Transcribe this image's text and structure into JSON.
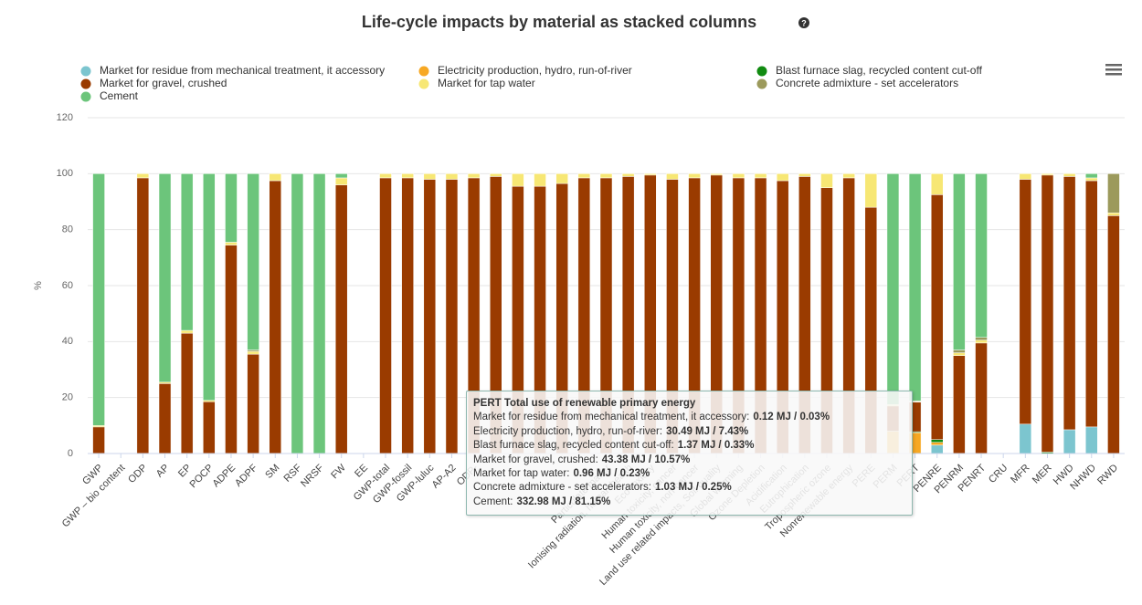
{
  "chart_data": {
    "type": "stacked_bar",
    "title": "Life-cycle impacts by material as stacked columns",
    "y_label": "%",
    "categories": [
      "GWP",
      "GWP – bio content",
      "ODP",
      "AP",
      "EP",
      "POCP",
      "ADPE",
      "ADPF",
      "SM",
      "RSF",
      "NRSF",
      "FW",
      "EE",
      "GWP-total",
      "GWP-fossil",
      "GWP-luluc",
      "AP-A2",
      "ODP-",
      null,
      null,
      null,
      null,
      null,
      "Particulate matter",
      "Ionising radiation, human health",
      "Eco-toxicity",
      "Human toxicity, cancer",
      "Human toxicity, non-cancer",
      "Land use related impacts, Soil quality",
      "Global warming",
      "Ozone Depletion",
      "Acidification",
      "Eutrophication",
      "Tropospheric ozone",
      "Nonrenewable energy",
      "PERE",
      "PERM",
      "PERT",
      "PENRE",
      "PENRM",
      "PENRT",
      "CRU",
      "MFR",
      "MER",
      "HWD",
      "NHWD",
      "RWD"
    ],
    "series": [
      {
        "name": "Market for residue from mechanical treatment, it accessory",
        "color": "#7cc5cf",
        "values": [
          0,
          0,
          0,
          0,
          0,
          0,
          0,
          0,
          0,
          0,
          0,
          0,
          0,
          0,
          0,
          0,
          0,
          0,
          0,
          0,
          0,
          0,
          0,
          0,
          0,
          0,
          0,
          0,
          0,
          0,
          0,
          0,
          0,
          0,
          0,
          0,
          0,
          0.03,
          3,
          0,
          0,
          0,
          10.5,
          0,
          8.5,
          9.5,
          0
        ]
      },
      {
        "name": "Electricity production, hydro, run-of-river",
        "color": "#f7a823",
        "values": [
          0,
          0,
          0,
          0,
          0,
          0,
          0,
          0,
          0,
          0,
          0,
          0,
          0,
          0,
          0,
          0,
          0,
          0,
          0,
          0,
          0,
          0,
          0,
          0,
          0,
          0,
          0,
          0,
          0,
          0,
          0,
          0,
          0,
          0,
          0,
          0,
          8,
          7.43,
          1,
          0,
          0,
          0,
          0,
          0,
          0,
          0,
          0
        ]
      },
      {
        "name": "Blast furnace slag, recycled content cut-off",
        "color": "#118b11",
        "values": [
          0,
          0,
          0,
          0,
          0,
          0,
          0,
          0,
          0,
          0,
          0,
          0,
          0,
          0,
          0,
          0,
          0,
          0,
          0,
          0,
          0,
          0,
          0,
          0,
          0,
          0,
          0,
          0,
          0,
          0,
          0,
          0,
          0,
          0,
          0,
          0,
          0,
          0.33,
          1,
          0,
          0,
          0,
          0,
          0.5,
          0,
          0,
          0
        ]
      },
      {
        "name": "Market for gravel, crushed",
        "color": "#9a3b00",
        "values": [
          9.5,
          0,
          98.5,
          25,
          43,
          18.5,
          74.5,
          35.5,
          97.5,
          0,
          0,
          96,
          0,
          98.5,
          98.5,
          98,
          98,
          98.5,
          99,
          95.5,
          95.5,
          96.5,
          98.5,
          98.5,
          99,
          99.5,
          98,
          98.5,
          99.5,
          98.5,
          98.5,
          97.5,
          99,
          95,
          98.5,
          88,
          9,
          10.57,
          87.5,
          35,
          39.5,
          0,
          87.5,
          99,
          90.5,
          88,
          85
        ]
      },
      {
        "name": "Market for tap water",
        "color": "#f7e774",
        "values": [
          0.5,
          0,
          1.5,
          0.5,
          1,
          0.5,
          1,
          1,
          2.5,
          0,
          0,
          2.5,
          0,
          1.5,
          1.5,
          2,
          2,
          1.5,
          1,
          4.5,
          4.5,
          3.5,
          1.5,
          1.5,
          1,
          0.5,
          2,
          1.5,
          0.5,
          1.5,
          1.5,
          2.5,
          1,
          5,
          1.5,
          12,
          0.5,
          0.23,
          7.5,
          1,
          1,
          0,
          2,
          0.5,
          1,
          1,
          1
        ]
      },
      {
        "name": "Concrete admixture - set accelerators",
        "color": "#9c9a5c",
        "values": [
          0,
          0,
          0,
          0,
          0,
          0,
          0,
          0.5,
          0,
          0,
          0,
          0,
          0,
          0,
          0,
          0,
          0,
          0,
          0,
          0,
          0,
          0,
          0,
          0,
          0,
          0,
          0,
          0,
          0,
          0,
          0,
          0,
          0,
          0,
          0,
          0,
          0,
          0.25,
          0,
          1,
          1,
          0,
          0,
          0,
          0,
          0,
          14
        ]
      },
      {
        "name": "Cement",
        "color": "#6cc57b",
        "values": [
          90,
          0,
          0,
          74.5,
          56,
          81,
          24.5,
          63,
          0,
          100,
          100,
          1.5,
          0,
          0,
          0,
          0,
          0,
          0,
          0,
          0,
          0,
          0,
          0,
          0,
          0,
          0,
          0,
          0,
          0,
          0,
          0,
          0,
          0,
          0,
          0,
          0,
          82.5,
          81.15,
          0,
          63,
          58.5,
          0,
          0,
          0,
          0,
          1.5,
          0
        ]
      }
    ],
    "ylim": [
      0,
      120
    ],
    "yticks": [
      0,
      20,
      40,
      60,
      80,
      100,
      120
    ],
    "grid": true,
    "tooltip": {
      "title": "PERT Total use of renewable primary energy",
      "rows": [
        {
          "label": "Market for residue from mechanical treatment, it accessory:",
          "value": "0.12 MJ / 0.03%"
        },
        {
          "label": "Electricity production, hydro, run-of-river:",
          "value": "30.49 MJ / 7.43%"
        },
        {
          "label": "Blast furnace slag, recycled content cut-off:",
          "value": "1.37 MJ / 0.33%"
        },
        {
          "label": "Market for gravel, crushed:",
          "value": "43.38 MJ / 10.57%"
        },
        {
          "label": "Market for tap water:",
          "value": "0.96 MJ / 0.23%"
        },
        {
          "label": "Concrete admixture - set accelerators:",
          "value": "1.03 MJ / 0.25%"
        },
        {
          "label": "Cement:",
          "value": "332.98 MJ / 81.15%"
        }
      ]
    }
  }
}
